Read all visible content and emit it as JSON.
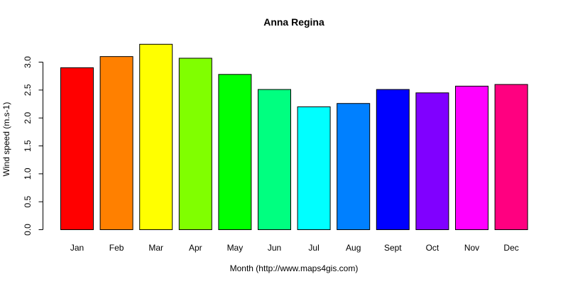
{
  "chart_data": {
    "type": "bar",
    "title": "Anna Regina",
    "xlabel": "Month (http://www.maps4gis.com)",
    "ylabel": "Wind speed (m.s-1)",
    "categories": [
      "Jan",
      "Feb",
      "Mar",
      "Apr",
      "May",
      "Jun",
      "Jul",
      "Aug",
      "Sept",
      "Oct",
      "Nov",
      "Dec"
    ],
    "values": [
      2.9,
      3.1,
      3.32,
      3.07,
      2.78,
      2.51,
      2.2,
      2.26,
      2.51,
      2.45,
      2.57,
      2.6
    ],
    "colors": [
      "#FF0000",
      "#FF8000",
      "#FFFF00",
      "#80FF00",
      "#00FF00",
      "#00FF80",
      "#00FFFF",
      "#0080FF",
      "#0000FF",
      "#8000FF",
      "#FF00FF",
      "#FF0080"
    ],
    "yticks": [
      "0.0",
      "0.5",
      "1.0",
      "1.5",
      "2.0",
      "2.5",
      "3.0"
    ],
    "ylim": [
      0,
      3.4
    ],
    "grid": false,
    "legend": "none"
  }
}
